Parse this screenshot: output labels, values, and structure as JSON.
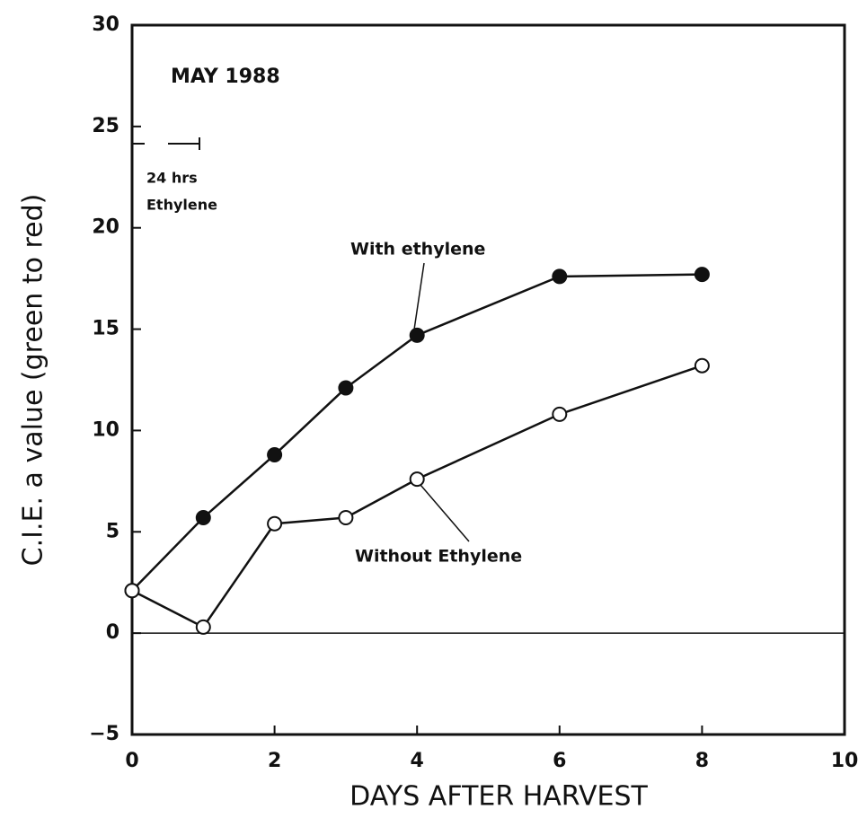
{
  "chart_data": {
    "type": "line",
    "annotation": "MAY 1988",
    "period_label": [
      "24 hrs",
      "Ethylene"
    ],
    "xlabel": "DAYS AFTER HARVEST",
    "ylabel": "C.I.E. a value (green to red)",
    "xlim": [
      0,
      10
    ],
    "xticks": [
      0,
      2,
      4,
      6,
      8,
      10
    ],
    "ylim": [
      -5,
      30
    ],
    "yticks": [
      {
        "value": -5,
        "label": "−5"
      },
      0,
      5,
      10,
      15,
      20,
      25,
      30
    ],
    "reference_line": 0,
    "series": [
      {
        "name": "With ethylene",
        "color": "#111111",
        "marker": "filled",
        "x": [
          0,
          1,
          2,
          3,
          4,
          6,
          8
        ],
        "values": [
          2.1,
          5.7,
          8.8,
          12.1,
          14.7,
          17.6,
          17.7
        ]
      },
      {
        "name": "Without Ethylene",
        "color": "#111111",
        "marker": "open",
        "x": [
          0,
          1,
          2,
          3,
          4,
          6,
          8
        ],
        "values": [
          2.1,
          0.3,
          5.4,
          5.7,
          7.6,
          10.8,
          13.2
        ]
      }
    ]
  }
}
